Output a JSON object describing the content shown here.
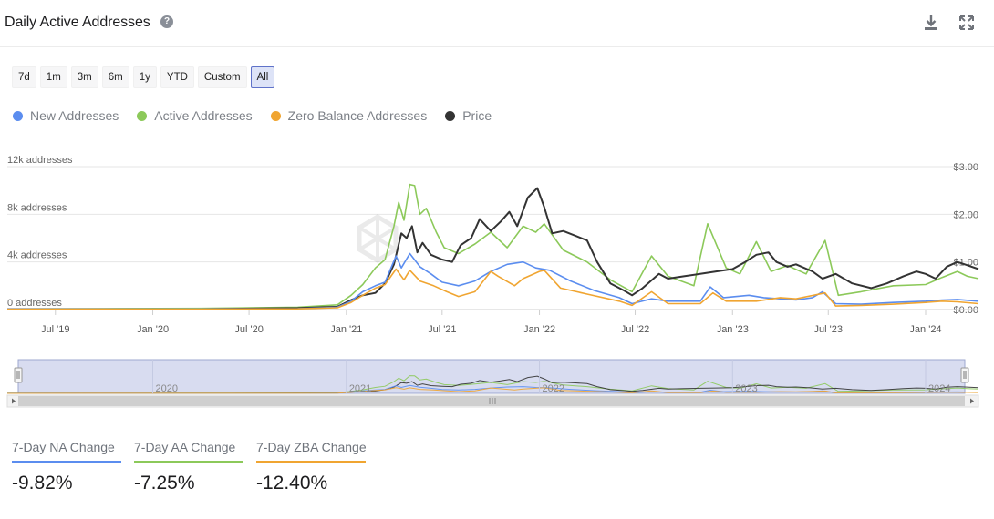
{
  "header": {
    "title": "Daily Active Addresses",
    "help_icon": "question-circle-icon",
    "download_icon": "download-icon",
    "expand_icon": "expand-icon"
  },
  "ranges": [
    {
      "label": "7d",
      "active": false
    },
    {
      "label": "1m",
      "active": false
    },
    {
      "label": "3m",
      "active": false
    },
    {
      "label": "6m",
      "active": false
    },
    {
      "label": "1y",
      "active": false
    },
    {
      "label": "YTD",
      "active": false
    },
    {
      "label": "Custom",
      "active": false
    },
    {
      "label": "All",
      "active": true
    }
  ],
  "legend": [
    {
      "label": "New Addresses",
      "color": "#5b8def"
    },
    {
      "label": "Active Addresses",
      "color": "#8cc95a"
    },
    {
      "label": "Zero Balance Addresses",
      "color": "#f0a531"
    },
    {
      "label": "Price",
      "color": "#333333"
    }
  ],
  "chart_data": {
    "type": "line",
    "x_ticks": [
      "Jul '19",
      "Jan '20",
      "Jul '20",
      "Jan '21",
      "Jul '21",
      "Jan '22",
      "Jul '22",
      "Jan '23",
      "Jul '23",
      "Jan '24"
    ],
    "y_left_ticks": [
      "0 addresses",
      "4k addresses",
      "8k addresses",
      "12k addresses"
    ],
    "y_right_ticks": [
      "$0.00",
      "$1.00",
      "$2.00",
      "$3.00"
    ],
    "y_left_range": [
      0,
      12000
    ],
    "y_right_range": [
      0,
      3
    ],
    "x_range": [
      "2019-04-01",
      "2024-04-10"
    ],
    "navigator_labels": [
      "2020",
      "2021",
      "2022",
      "2023",
      "2024"
    ],
    "series": [
      {
        "name": "New Addresses",
        "axis": "left",
        "color": "#5b8def",
        "points": [
          [
            "2019-04-01",
            30
          ],
          [
            "2019-10-01",
            40
          ],
          [
            "2020-04-01",
            50
          ],
          [
            "2020-10-01",
            80
          ],
          [
            "2020-12-15",
            200
          ],
          [
            "2021-01-10",
            700
          ],
          [
            "2021-02-01",
            1500
          ],
          [
            "2021-02-25",
            2000
          ],
          [
            "2021-03-15",
            2300
          ],
          [
            "2021-04-05",
            4500
          ],
          [
            "2021-04-15",
            3500
          ],
          [
            "2021-05-01",
            4700
          ],
          [
            "2021-05-20",
            3600
          ],
          [
            "2021-06-10",
            3000
          ],
          [
            "2021-07-01",
            2300
          ],
          [
            "2021-08-01",
            2000
          ],
          [
            "2021-09-01",
            2400
          ],
          [
            "2021-10-01",
            3200
          ],
          [
            "2021-11-01",
            3800
          ],
          [
            "2021-12-01",
            4000
          ],
          [
            "2021-12-25",
            3500
          ],
          [
            "2022-01-20",
            3300
          ],
          [
            "2022-03-01",
            2400
          ],
          [
            "2022-04-15",
            1600
          ],
          [
            "2022-06-01",
            1000
          ],
          [
            "2022-06-25",
            500
          ],
          [
            "2022-08-01",
            900
          ],
          [
            "2022-09-01",
            700
          ],
          [
            "2022-11-01",
            700
          ],
          [
            "2022-11-20",
            1900
          ],
          [
            "2022-12-15",
            1000
          ],
          [
            "2023-02-01",
            1200
          ],
          [
            "2023-03-01",
            1000
          ],
          [
            "2023-04-01",
            900
          ],
          [
            "2023-05-01",
            800
          ],
          [
            "2023-06-01",
            1000
          ],
          [
            "2023-06-20",
            1500
          ],
          [
            "2023-07-15",
            500
          ],
          [
            "2023-09-01",
            450
          ],
          [
            "2023-11-01",
            600
          ],
          [
            "2024-01-01",
            700
          ],
          [
            "2024-02-01",
            800
          ],
          [
            "2024-03-01",
            850
          ],
          [
            "2024-04-10",
            700
          ]
        ]
      },
      {
        "name": "Active Addresses",
        "axis": "left",
        "color": "#8cc95a",
        "points": [
          [
            "2019-04-01",
            50
          ],
          [
            "2019-10-01",
            80
          ],
          [
            "2020-04-01",
            100
          ],
          [
            "2020-10-01",
            200
          ],
          [
            "2020-12-15",
            400
          ],
          [
            "2021-01-10",
            1200
          ],
          [
            "2021-02-01",
            2100
          ],
          [
            "2021-02-25",
            3500
          ],
          [
            "2021-03-15",
            4200
          ],
          [
            "2021-04-01",
            7000
          ],
          [
            "2021-04-10",
            9000
          ],
          [
            "2021-04-20",
            7500
          ],
          [
            "2021-05-01",
            10500
          ],
          [
            "2021-05-10",
            10400
          ],
          [
            "2021-05-20",
            8000
          ],
          [
            "2021-06-01",
            8500
          ],
          [
            "2021-06-20",
            6500
          ],
          [
            "2021-07-05",
            5200
          ],
          [
            "2021-08-01",
            4700
          ],
          [
            "2021-09-01",
            5500
          ],
          [
            "2021-10-01",
            6500
          ],
          [
            "2021-11-01",
            5200
          ],
          [
            "2021-12-01",
            7000
          ],
          [
            "2021-12-25",
            6500
          ],
          [
            "2022-01-10",
            7200
          ],
          [
            "2022-02-15",
            5000
          ],
          [
            "2022-04-01",
            4000
          ],
          [
            "2022-05-15",
            2500
          ],
          [
            "2022-06-25",
            1500
          ],
          [
            "2022-08-01",
            4500
          ],
          [
            "2022-09-01",
            2800
          ],
          [
            "2022-10-20",
            2000
          ],
          [
            "2022-11-15",
            7200
          ],
          [
            "2022-12-20",
            3500
          ],
          [
            "2023-01-15",
            3000
          ],
          [
            "2023-02-15",
            5700
          ],
          [
            "2023-03-15",
            3200
          ],
          [
            "2023-04-15",
            3700
          ],
          [
            "2023-05-20",
            3000
          ],
          [
            "2023-06-25",
            5800
          ],
          [
            "2023-07-20",
            1200
          ],
          [
            "2023-09-01",
            1500
          ],
          [
            "2023-11-01",
            2000
          ],
          [
            "2024-01-01",
            2100
          ],
          [
            "2024-02-01",
            2700
          ],
          [
            "2024-03-01",
            3200
          ],
          [
            "2024-03-20",
            2800
          ],
          [
            "2024-04-10",
            2600
          ]
        ]
      },
      {
        "name": "Zero Balance Addresses",
        "axis": "left",
        "color": "#f0a531",
        "points": [
          [
            "2019-04-01",
            20
          ],
          [
            "2019-10-01",
            30
          ],
          [
            "2020-04-01",
            40
          ],
          [
            "2020-10-01",
            60
          ],
          [
            "2020-12-15",
            150
          ],
          [
            "2021-01-10",
            600
          ],
          [
            "2021-02-01",
            1200
          ],
          [
            "2021-02-25",
            1800
          ],
          [
            "2021-03-15",
            2100
          ],
          [
            "2021-04-05",
            3400
          ],
          [
            "2021-04-20",
            2500
          ],
          [
            "2021-05-01",
            3300
          ],
          [
            "2021-05-20",
            2400
          ],
          [
            "2021-06-15",
            2000
          ],
          [
            "2021-07-10",
            1500
          ],
          [
            "2021-08-01",
            1100
          ],
          [
            "2021-09-01",
            1500
          ],
          [
            "2021-10-01",
            3200
          ],
          [
            "2021-10-15",
            2800
          ],
          [
            "2021-11-15",
            2000
          ],
          [
            "2021-12-01",
            2600
          ],
          [
            "2022-01-01",
            3200
          ],
          [
            "2022-01-10",
            3300
          ],
          [
            "2022-02-10",
            1800
          ],
          [
            "2022-04-01",
            1300
          ],
          [
            "2022-06-01",
            700
          ],
          [
            "2022-06-25",
            350
          ],
          [
            "2022-08-01",
            1500
          ],
          [
            "2022-09-01",
            500
          ],
          [
            "2022-11-01",
            500
          ],
          [
            "2022-11-25",
            1400
          ],
          [
            "2022-12-20",
            700
          ],
          [
            "2023-02-15",
            700
          ],
          [
            "2023-04-01",
            1000
          ],
          [
            "2023-05-01",
            900
          ],
          [
            "2023-06-25",
            1400
          ],
          [
            "2023-07-15",
            300
          ],
          [
            "2023-09-01",
            350
          ],
          [
            "2023-11-01",
            450
          ],
          [
            "2024-01-01",
            600
          ],
          [
            "2024-02-01",
            700
          ],
          [
            "2024-03-01",
            650
          ],
          [
            "2024-04-10",
            500
          ]
        ]
      },
      {
        "name": "Price",
        "axis": "right",
        "color": "#333333",
        "points": [
          [
            "2019-04-01",
            0.01
          ],
          [
            "2019-10-01",
            0.01
          ],
          [
            "2020-04-01",
            0.01
          ],
          [
            "2020-10-01",
            0.03
          ],
          [
            "2020-12-15",
            0.06
          ],
          [
            "2021-01-10",
            0.2
          ],
          [
            "2021-02-01",
            0.3
          ],
          [
            "2021-02-25",
            0.35
          ],
          [
            "2021-03-15",
            0.55
          ],
          [
            "2021-04-01",
            0.95
          ],
          [
            "2021-04-15",
            1.6
          ],
          [
            "2021-04-25",
            1.5
          ],
          [
            "2021-05-05",
            1.75
          ],
          [
            "2021-05-15",
            1.2
          ],
          [
            "2021-05-25",
            1.4
          ],
          [
            "2021-06-10",
            1.15
          ],
          [
            "2021-07-01",
            1.05
          ],
          [
            "2021-07-20",
            1.0
          ],
          [
            "2021-08-05",
            1.35
          ],
          [
            "2021-08-25",
            1.5
          ],
          [
            "2021-09-10",
            1.9
          ],
          [
            "2021-10-01",
            1.65
          ],
          [
            "2021-10-20",
            1.85
          ],
          [
            "2021-11-05",
            2.05
          ],
          [
            "2021-11-20",
            1.75
          ],
          [
            "2021-12-10",
            2.35
          ],
          [
            "2021-12-28",
            2.55
          ],
          [
            "2022-01-10",
            2.15
          ],
          [
            "2022-01-25",
            1.6
          ],
          [
            "2022-02-15",
            1.65
          ],
          [
            "2022-03-10",
            1.55
          ],
          [
            "2022-04-01",
            1.45
          ],
          [
            "2022-04-20",
            1.0
          ],
          [
            "2022-05-15",
            0.55
          ],
          [
            "2022-06-10",
            0.4
          ],
          [
            "2022-06-25",
            0.3
          ],
          [
            "2022-07-15",
            0.45
          ],
          [
            "2022-08-15",
            0.75
          ],
          [
            "2022-09-01",
            0.65
          ],
          [
            "2022-10-01",
            0.7
          ],
          [
            "2022-11-01",
            0.75
          ],
          [
            "2022-12-01",
            0.8
          ],
          [
            "2023-01-01",
            0.85
          ],
          [
            "2023-01-25",
            1.0
          ],
          [
            "2023-02-15",
            1.15
          ],
          [
            "2023-03-10",
            1.2
          ],
          [
            "2023-03-25",
            1.0
          ],
          [
            "2023-04-15",
            0.9
          ],
          [
            "2023-05-01",
            0.95
          ],
          [
            "2023-06-01",
            0.8
          ],
          [
            "2023-06-20",
            0.65
          ],
          [
            "2023-07-15",
            0.75
          ],
          [
            "2023-08-15",
            0.55
          ],
          [
            "2023-09-20",
            0.45
          ],
          [
            "2023-10-20",
            0.55
          ],
          [
            "2023-11-20",
            0.7
          ],
          [
            "2023-12-15",
            0.8
          ],
          [
            "2024-01-01",
            0.75
          ],
          [
            "2024-01-20",
            0.65
          ],
          [
            "2024-02-10",
            0.9
          ],
          [
            "2024-03-01",
            1.0
          ],
          [
            "2024-03-15",
            0.95
          ],
          [
            "2024-04-10",
            0.85
          ]
        ]
      }
    ]
  },
  "kpis": [
    {
      "label": "7-Day NA Change",
      "value": "-9.82%",
      "color": "#5b8def"
    },
    {
      "label": "7-Day AA Change",
      "value": "-7.25%",
      "color": "#8cc95a"
    },
    {
      "label": "7-Day ZBA Change",
      "value": "-12.40%",
      "color": "#f0a531"
    }
  ]
}
